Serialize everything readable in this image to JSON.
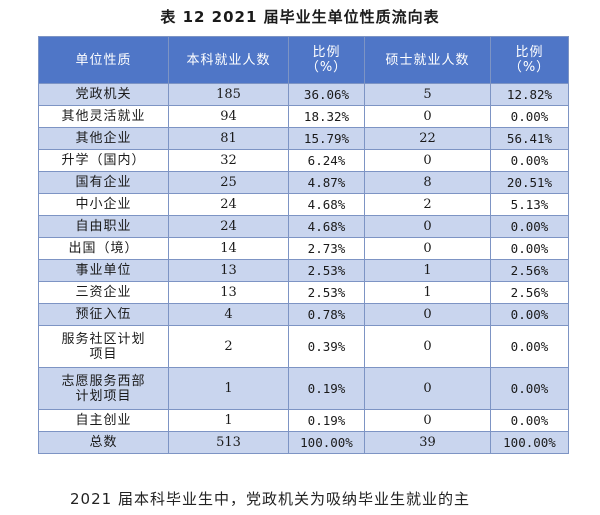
{
  "title": "表 12 2021 届毕业生单位性质流向表",
  "headers": {
    "unit_type": "单位性质",
    "bachelor_count": "本科就业人数",
    "bachelor_pct": "比例\n（%）",
    "master_count": "硕士就业人数",
    "master_pct": "比例\n（%）"
  },
  "rows": [
    {
      "name": "党政机关",
      "bachelor_count": "185",
      "bachelor_pct": "36.06%",
      "master_count": "5",
      "master_pct": "12.82%"
    },
    {
      "name": "其他灵活就业",
      "bachelor_count": "94",
      "bachelor_pct": "18.32%",
      "master_count": "0",
      "master_pct": "0.00%"
    },
    {
      "name": "其他企业",
      "bachelor_count": "81",
      "bachelor_pct": "15.79%",
      "master_count": "22",
      "master_pct": "56.41%"
    },
    {
      "name": "升学（国内）",
      "bachelor_count": "32",
      "bachelor_pct": "6.24%",
      "master_count": "0",
      "master_pct": "0.00%"
    },
    {
      "name": "国有企业",
      "bachelor_count": "25",
      "bachelor_pct": "4.87%",
      "master_count": "8",
      "master_pct": "20.51%"
    },
    {
      "name": "中小企业",
      "bachelor_count": "24",
      "bachelor_pct": "4.68%",
      "master_count": "2",
      "master_pct": "5.13%"
    },
    {
      "name": "自由职业",
      "bachelor_count": "24",
      "bachelor_pct": "4.68%",
      "master_count": "0",
      "master_pct": "0.00%"
    },
    {
      "name": "出国（境）",
      "bachelor_count": "14",
      "bachelor_pct": "2.73%",
      "master_count": "0",
      "master_pct": "0.00%"
    },
    {
      "name": "事业单位",
      "bachelor_count": "13",
      "bachelor_pct": "2.53%",
      "master_count": "1",
      "master_pct": "2.56%"
    },
    {
      "name": "三资企业",
      "bachelor_count": "13",
      "bachelor_pct": "2.53%",
      "master_count": "1",
      "master_pct": "2.56%"
    },
    {
      "name": "预征入伍",
      "bachelor_count": "4",
      "bachelor_pct": "0.78%",
      "master_count": "0",
      "master_pct": "0.00%"
    },
    {
      "name": "服务社区计划\n项目",
      "bachelor_count": "2",
      "bachelor_pct": "0.39%",
      "master_count": "0",
      "master_pct": "0.00%"
    },
    {
      "name": "志愿服务西部\n计划项目",
      "bachelor_count": "1",
      "bachelor_pct": "0.19%",
      "master_count": "0",
      "master_pct": "0.00%"
    },
    {
      "name": "自主创业",
      "bachelor_count": "1",
      "bachelor_pct": "0.19%",
      "master_count": "0",
      "master_pct": "0.00%"
    },
    {
      "name": "总数",
      "bachelor_count": "513",
      "bachelor_pct": "100.00%",
      "master_count": "39",
      "master_pct": "100.00%"
    }
  ],
  "footer_text": "2021 届本科毕业生中，党政机关为吸纳毕业生就业的主"
}
